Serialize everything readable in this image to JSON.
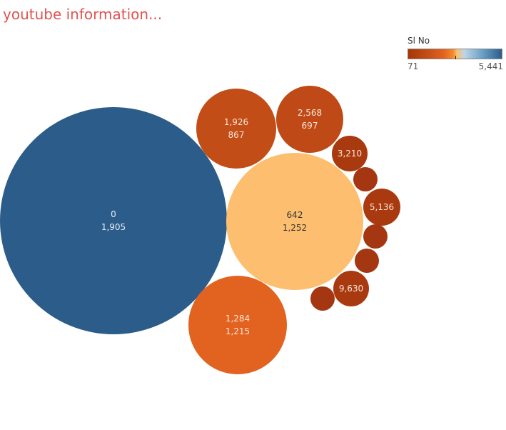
{
  "title": "youtube information...",
  "legend": {
    "title": "Sl No",
    "min_label": "71",
    "max_label": "5,441"
  },
  "chart_data": {
    "type": "packed-bubble",
    "title": "youtube information...",
    "color_scale": {
      "field": "Sl No",
      "min": 71,
      "max": 5441,
      "palette": "orange-blue diverging"
    },
    "bubbles": [
      {
        "label_1": "0",
        "label_2": "1,905",
        "color": "#2c5d8a",
        "text_color": "#e8eef4"
      },
      {
        "label_1": "642",
        "label_2": "1,252",
        "color": "#fdbf6f",
        "text_color": "#333333"
      },
      {
        "label_1": "1,284",
        "label_2": "1,215",
        "color": "#e2621f",
        "text_color": "#fbe6d8"
      },
      {
        "label_1": "1,926",
        "label_2": "867",
        "color": "#c24d16",
        "text_color": "#fbe6d8"
      },
      {
        "label_1": "2,568",
        "label_2": "697",
        "color": "#bf4a17",
        "text_color": "#fbe6d8"
      },
      {
        "label_1": "3,210",
        "label_2": "",
        "color": "#a9390f",
        "text_color": "#fbe6d8"
      },
      {
        "label_1": "",
        "label_2": "",
        "color": "#a43712",
        "text_color": "#fbe6d8"
      },
      {
        "label_1": "5,136",
        "label_2": "",
        "color": "#a93a10",
        "text_color": "#fbe6d8"
      },
      {
        "label_1": "",
        "label_2": "",
        "color": "#a43712",
        "text_color": "#fbe6d8"
      },
      {
        "label_1": "",
        "label_2": "",
        "color": "#a43712",
        "text_color": "#fbe6d8"
      },
      {
        "label_1": "9,630",
        "label_2": "",
        "color": "#a93a10",
        "text_color": "#fbe6d8"
      },
      {
        "label_1": "",
        "label_2": "",
        "color": "#a43712",
        "text_color": "#fbe6d8"
      }
    ]
  }
}
